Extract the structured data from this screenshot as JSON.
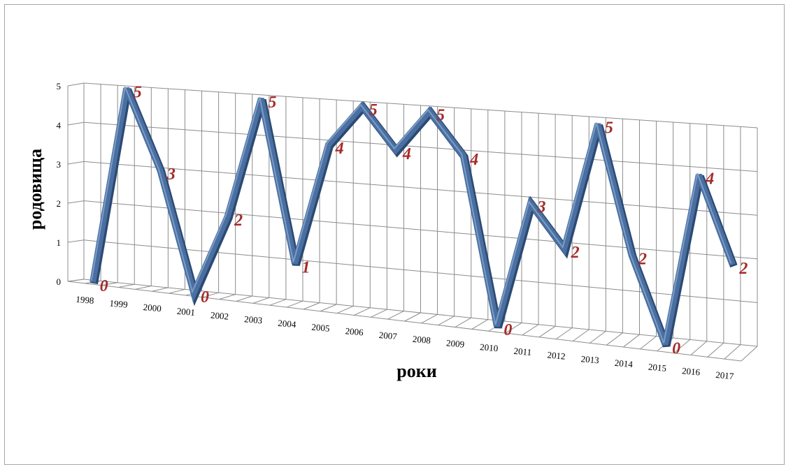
{
  "chart_data": {
    "type": "line",
    "categories": [
      "1998",
      "1999",
      "2000",
      "2001",
      "2002",
      "2003",
      "2004",
      "2005",
      "2006",
      "2007",
      "2008",
      "2009",
      "2010",
      "2011",
      "2012",
      "2013",
      "2014",
      "2015",
      "2016",
      "2017"
    ],
    "values": [
      0,
      5,
      3,
      0,
      2,
      5,
      1,
      4,
      5,
      4,
      5,
      4,
      0,
      3,
      2,
      5,
      2,
      0,
      4,
      2
    ],
    "title": "",
    "xlabel": "роки",
    "ylabel": "родовища",
    "ylim": [
      0,
      5
    ],
    "yticks": [
      "0",
      "1",
      "2",
      "3",
      "4",
      "5"
    ],
    "grid": true,
    "style": "3d-line",
    "line_color": "#4a6fa0",
    "label_color": "#a52a2a"
  }
}
